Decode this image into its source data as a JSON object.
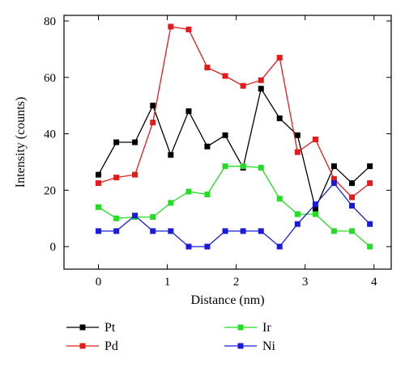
{
  "chart_data": {
    "type": "line",
    "title": "",
    "xlabel": "Distance (nm)",
    "ylabel": "Intensity (counts)",
    "xlim": [
      -0.5,
      4.25
    ],
    "ylim": [
      -8,
      82
    ],
    "xticks": [
      "0",
      "1",
      "2",
      "3",
      "4"
    ],
    "yticks": [
      "0",
      "20",
      "40",
      "60",
      "80"
    ],
    "legend_placement": "below",
    "grid": false,
    "x": [
      0,
      0.26,
      0.53,
      0.79,
      1.05,
      1.31,
      1.58,
      1.84,
      2.1,
      2.36,
      2.63,
      2.89,
      3.15,
      3.42,
      3.68,
      3.94
    ],
    "series": [
      {
        "name": "Pt",
        "color": "#000000",
        "values": [
          25.5,
          37,
          37,
          50,
          32.5,
          48,
          35.5,
          39.5,
          28,
          56,
          45.5,
          39.5,
          13.5,
          28.5,
          22.5,
          28.5
        ]
      },
      {
        "name": "Pd",
        "color": "#e41a1c",
        "values": [
          22.5,
          24.5,
          25.5,
          44,
          78,
          77,
          63.5,
          60.5,
          57,
          59,
          67,
          33.5,
          38,
          24,
          17.5,
          22.5
        ]
      },
      {
        "name": "Ir",
        "color": "#22dd22",
        "values": [
          14,
          10,
          10.5,
          10.5,
          15.5,
          19.5,
          18.5,
          28.5,
          28.5,
          28,
          17,
          11.5,
          11.5,
          5.5,
          5.5,
          0
        ]
      },
      {
        "name": "Ni",
        "color": "#1a1adb",
        "values": [
          5.5,
          5.5,
          11,
          5.5,
          5.5,
          0,
          0,
          5.5,
          5.5,
          5.5,
          0,
          8,
          15,
          22.5,
          14.5,
          8
        ]
      }
    ]
  }
}
